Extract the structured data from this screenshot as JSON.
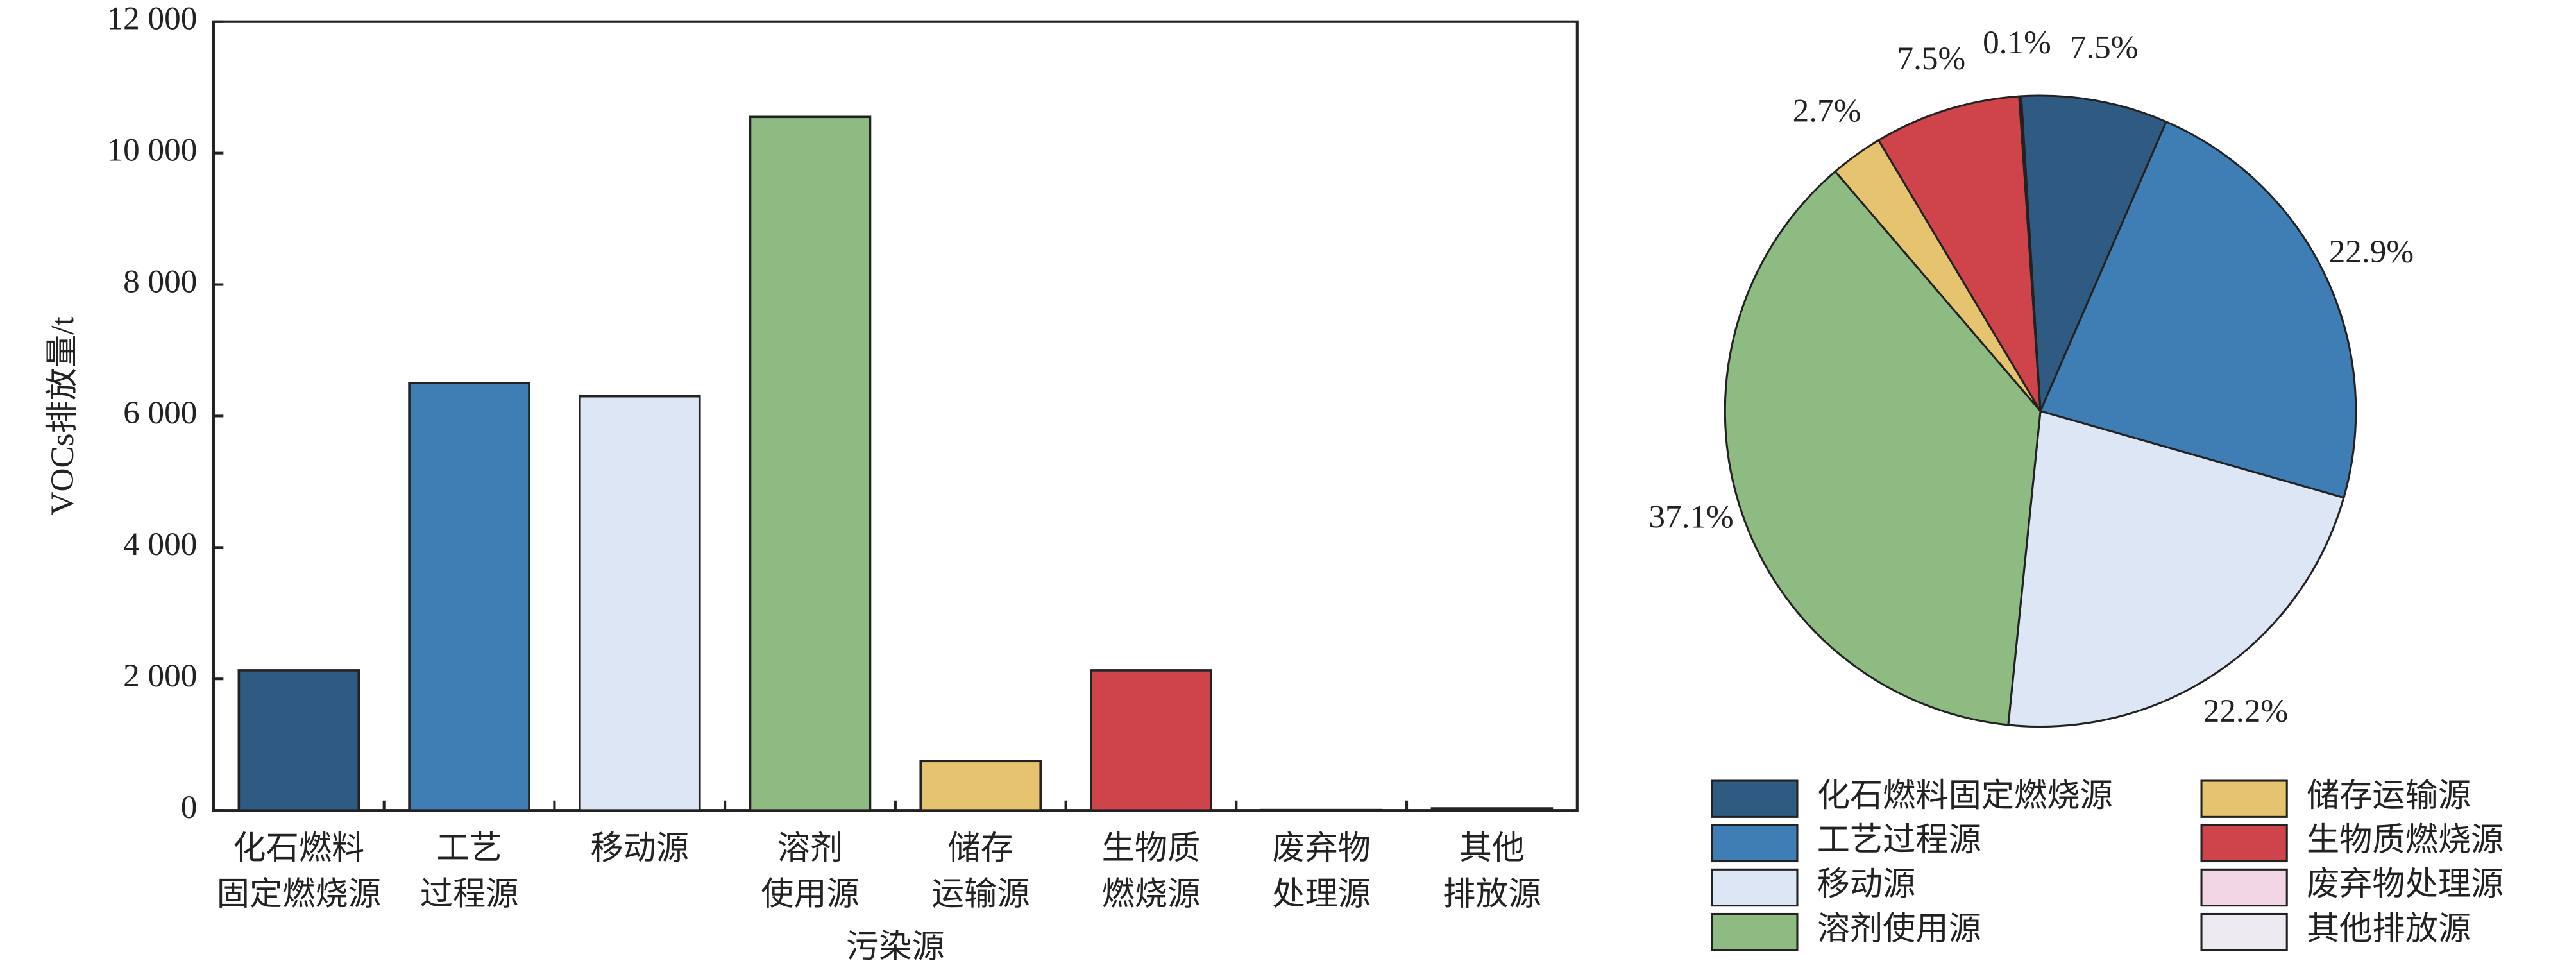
{
  "chart_data": [
    {
      "type": "bar",
      "y_label": "VOCs排放量/t",
      "x_label": "污染源",
      "categories": [
        [
          "化石燃料",
          "固定燃烧源"
        ],
        [
          "工艺",
          "过程源"
        ],
        [
          "移动源"
        ],
        [
          "溶剂",
          "使用源"
        ],
        [
          "储存",
          "运输源"
        ],
        [
          "生物质",
          "燃烧源"
        ],
        [
          "废弃物",
          "处理源"
        ],
        [
          "其他",
          "排放源"
        ]
      ],
      "values": [
        2130,
        6500,
        6300,
        10550,
        750,
        2130,
        5,
        30
      ],
      "colors": [
        "#2f5a82",
        "#3f7db5",
        "#dce6f5",
        "#8ebb82",
        "#e6c36e",
        "#cf434a",
        "#f2d6e6",
        "#eeeaf2"
      ],
      "ylim": [
        0,
        12000
      ],
      "yticks": [
        0,
        {
          "value": 2000,
          "label": "2 000"
        },
        {
          "value": 4000,
          "label": "4 000"
        },
        {
          "value": 6000,
          "label": "6 000"
        },
        {
          "value": 8000,
          "label": "8 000"
        },
        {
          "value": 10000,
          "label": "10 000"
        },
        {
          "value": 12000,
          "label": "12 000"
        }
      ]
    },
    {
      "type": "pie",
      "labels": [
        "化石燃料固定燃烧源",
        "工艺过程源",
        "移动源",
        "溶剂使用源",
        "储存运输源",
        "生物质燃烧源",
        "废弃物处理源",
        "其他排放源"
      ],
      "values": [
        7.5,
        22.9,
        22.2,
        37.1,
        2.7,
        7.5,
        0,
        0.1
      ],
      "value_labels": [
        "7.5%",
        "22.9%",
        "22.2%",
        "37.1%",
        "2.7%",
        "7.5%",
        null,
        "0.1%"
      ],
      "colors": [
        "#2f5a82",
        "#3f7db5",
        "#dce6f5",
        "#8ebb82",
        "#e6c36e",
        "#cf434a",
        "#f2d6e6",
        "#eeeaf2"
      ],
      "legend": "bottom"
    }
  ]
}
